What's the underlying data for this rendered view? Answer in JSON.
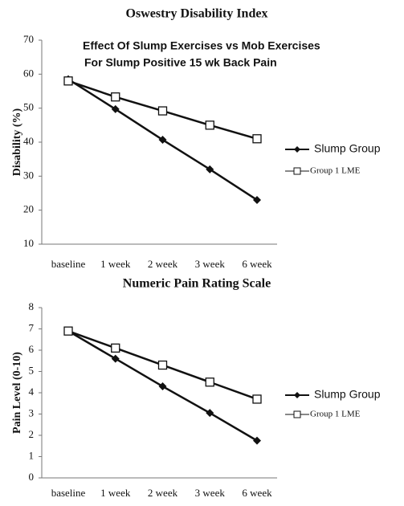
{
  "chart_data": [
    {
      "type": "line",
      "title": "Oswestry Disability Index",
      "annotation": [
        "Effect Of Slump Exercises vs Mob Exercises",
        "For Slump Positive 15 wk Back Pain"
      ],
      "y_label": "Disability (%)",
      "categories": [
        "baseline",
        "1 week",
        "2 week",
        "3 week",
        "6 week"
      ],
      "series": [
        {
          "name": "Slump Group",
          "color": "#111111",
          "marker": "diamond",
          "values": [
            58.5,
            49.7,
            40.7,
            32,
            23
          ]
        },
        {
          "name": "Group 1 LME",
          "color": "#111111",
          "marker": "square",
          "values": [
            58,
            53.3,
            49.2,
            45,
            41
          ]
        }
      ],
      "ylim": [
        10,
        70
      ],
      "yticks": [
        10,
        20,
        30,
        40,
        50,
        60,
        70
      ],
      "grid": false,
      "legend": "right"
    },
    {
      "type": "line",
      "title": "Numeric Pain Rating Scale",
      "y_label": "Pain Level (0-10)",
      "categories": [
        "baseline",
        "1 week",
        "2 week",
        "3 week",
        "6 week"
      ],
      "series": [
        {
          "name": "Slump Group",
          "color": "#111111",
          "marker": "diamond",
          "values": [
            6.9,
            5.6,
            4.3,
            3.05,
            1.75
          ]
        },
        {
          "name": "Group 1 LME",
          "color": "#111111",
          "marker": "square",
          "values": [
            6.9,
            6.1,
            5.3,
            4.5,
            3.7
          ]
        }
      ],
      "ylim": [
        0,
        8
      ],
      "yticks": [
        0,
        1,
        2,
        3,
        4,
        5,
        6,
        7,
        8
      ],
      "grid": false,
      "legend": "right"
    }
  ]
}
